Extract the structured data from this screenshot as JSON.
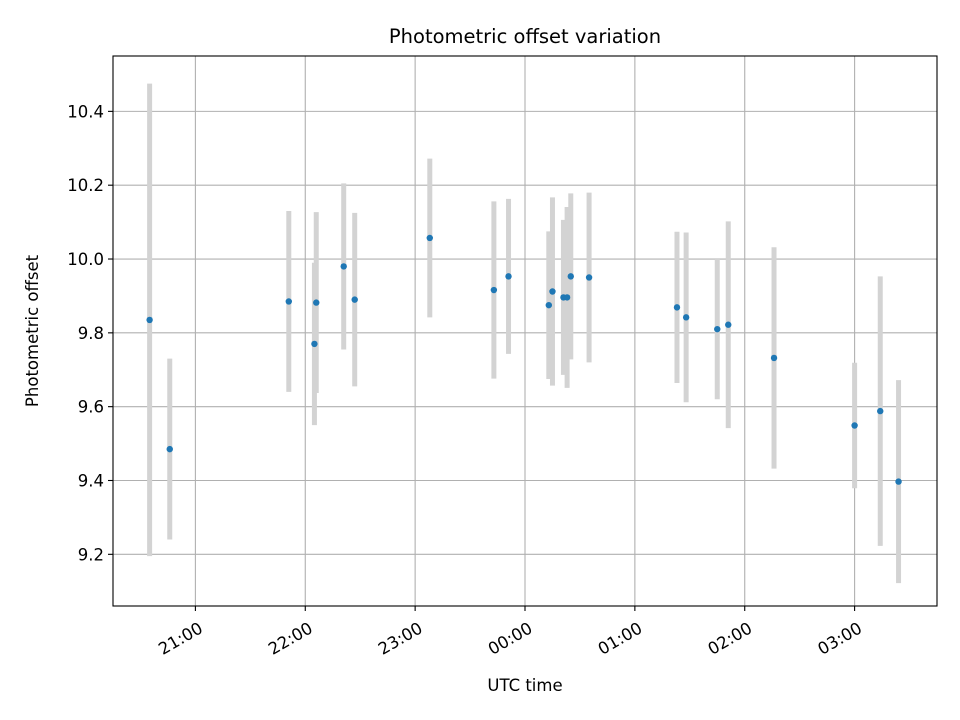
{
  "chart_data": {
    "type": "scatter",
    "title": "Photometric offset variation",
    "xlabel": "UTC time",
    "ylabel": "Photometric offset",
    "x_tick_labels": [
      "21:00",
      "22:00",
      "23:00",
      "00:00",
      "01:00",
      "02:00",
      "03:00"
    ],
    "y_ticks": [
      9.2,
      9.4,
      9.6,
      9.8,
      10.0,
      10.2,
      10.4
    ],
    "y_tick_labels": [
      "9.2",
      "9.4",
      "9.6",
      "9.8",
      "10.0",
      "10.2",
      "10.4"
    ],
    "xlim": [
      "20:15",
      "03:45"
    ],
    "ylim": [
      9.06,
      10.55
    ],
    "grid": true,
    "colors": {
      "marker": "#1f77b4",
      "errorbar": "#d3d3d3",
      "grid": "#b0b0b0"
    },
    "points": [
      {
        "t": "20:35",
        "y": 9.835,
        "err": 0.64
      },
      {
        "t": "20:46",
        "y": 9.485,
        "err": 0.245
      },
      {
        "t": "21:51",
        "y": 9.885,
        "err": 0.245
      },
      {
        "t": "22:05",
        "y": 9.77,
        "err": 0.22
      },
      {
        "t": "22:06",
        "y": 9.882,
        "err": 0.245
      },
      {
        "t": "22:21",
        "y": 9.98,
        "err": 0.225
      },
      {
        "t": "22:27",
        "y": 9.89,
        "err": 0.235
      },
      {
        "t": "23:08",
        "y": 10.057,
        "err": 0.215
      },
      {
        "t": "23:43",
        "y": 9.916,
        "err": 0.24
      },
      {
        "t": "23:51",
        "y": 9.953,
        "err": 0.21
      },
      {
        "t": "00:13",
        "y": 9.875,
        "err": 0.2
      },
      {
        "t": "00:15",
        "y": 9.912,
        "err": 0.255
      },
      {
        "t": "00:21",
        "y": 9.896,
        "err": 0.21
      },
      {
        "t": "00:23",
        "y": 9.896,
        "err": 0.245
      },
      {
        "t": "00:25",
        "y": 9.953,
        "err": 0.225
      },
      {
        "t": "00:35",
        "y": 9.95,
        "err": 0.23
      },
      {
        "t": "01:23",
        "y": 9.869,
        "err": 0.205
      },
      {
        "t": "01:28",
        "y": 9.842,
        "err": 0.23
      },
      {
        "t": "01:45",
        "y": 9.81,
        "err": 0.19
      },
      {
        "t": "01:51",
        "y": 9.822,
        "err": 0.28
      },
      {
        "t": "02:16",
        "y": 9.732,
        "err": 0.3
      },
      {
        "t": "03:00",
        "y": 9.549,
        "err": 0.17
      },
      {
        "t": "03:14",
        "y": 9.588,
        "err": 0.365
      },
      {
        "t": "03:24",
        "y": 9.397,
        "err": 0.275
      }
    ]
  }
}
